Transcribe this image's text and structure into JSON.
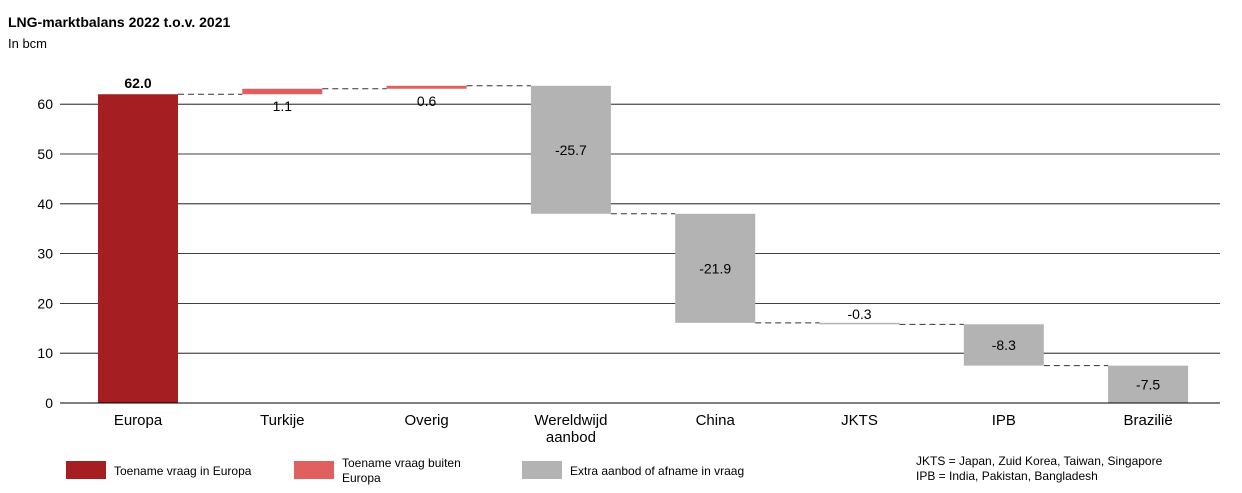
{
  "chart_data": {
    "type": "bar",
    "title": "LNG-marktbalans 2022 t.o.v. 2021",
    "subtitle": "In bcm",
    "ylim": [
      0,
      70
    ],
    "yticks": [
      0,
      10,
      20,
      30,
      40,
      50,
      60
    ],
    "grid": true,
    "categories": [
      {
        "lines": [
          "Europa"
        ]
      },
      {
        "lines": [
          "Turkije"
        ]
      },
      {
        "lines": [
          "Overig"
        ]
      },
      {
        "lines": [
          "Wereldwijd",
          "aanbod"
        ]
      },
      {
        "lines": [
          "China"
        ]
      },
      {
        "lines": [
          "JKTS"
        ]
      },
      {
        "lines": [
          "IPB"
        ]
      },
      {
        "lines": [
          "Brazilië"
        ]
      }
    ],
    "bars": [
      {
        "start": 0,
        "end": 62.0,
        "label": "62.0",
        "color": "#a41e22",
        "bold": true
      },
      {
        "start": 62.0,
        "end": 63.1,
        "label": "1.1",
        "color": "#e06060",
        "bold": false
      },
      {
        "start": 63.1,
        "end": 63.7,
        "label": "0.6",
        "color": "#e06060",
        "bold": false
      },
      {
        "start": 63.7,
        "end": 38.0,
        "label": "-25.7",
        "color": "#b3b3b3",
        "bold": false
      },
      {
        "start": 38.0,
        "end": 16.1,
        "label": "-21.9",
        "color": "#b3b3b3",
        "bold": false
      },
      {
        "start": 16.1,
        "end": 15.8,
        "label": "-0.3",
        "color": "#b3b3b3",
        "bold": false
      },
      {
        "start": 15.8,
        "end": 7.5,
        "label": "-8.3",
        "color": "#b3b3b3",
        "bold": false
      },
      {
        "start": 7.5,
        "end": 0,
        "label": "-7.5",
        "color": "#b3b3b3",
        "bold": false
      }
    ],
    "legend": [
      {
        "lines": [
          "Toename vraag in Europa"
        ],
        "color": "#a41e22"
      },
      {
        "lines": [
          "Toename vraag buiten",
          "Europa"
        ],
        "color": "#e06060"
      },
      {
        "lines": [
          "Extra aanbod of afname in vraag"
        ],
        "color": "#b3b3b3"
      }
    ],
    "notes": [
      "JKTS = Japan, Zuid Korea, Taiwan, Singapore",
      "IPB = India, Pakistan, Bangladesh"
    ]
  }
}
